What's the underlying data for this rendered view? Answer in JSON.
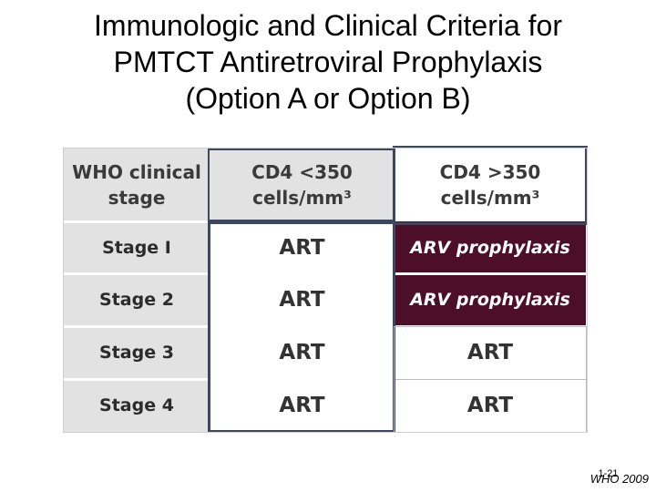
{
  "title": {
    "line1": "Immunologic and Clinical Criteria for",
    "line2": "PMTCT Antiretroviral Prophylaxis",
    "line3": "(Option A or Option B)"
  },
  "table": {
    "headers": {
      "col1_line1": "WHO clinical",
      "col1_line2": "stage",
      "col2_line1": "CD4 <350",
      "col2_line2": "cells/mm³",
      "col3_line1": "CD4 >350",
      "col3_line2": "cells/mm³"
    },
    "rows": [
      {
        "stage": "Stage I",
        "cd4_lt_350": "ART",
        "cd4_gt_350": "ARV prophylaxis"
      },
      {
        "stage": "Stage 2",
        "cd4_lt_350": "ART",
        "cd4_gt_350": "ARV prophylaxis"
      },
      {
        "stage": "Stage 3",
        "cd4_lt_350": "ART",
        "cd4_gt_350": "ART"
      },
      {
        "stage": "Stage 4",
        "cd4_lt_350": "ART",
        "cd4_gt_350": "ART"
      }
    ],
    "colors": {
      "header_gray": "#e2e2e2",
      "prophylaxis_fill": "#4d0e2a",
      "frame_border": "#3c4860"
    }
  },
  "slide_number": "1-21",
  "source": "WHO 2009"
}
